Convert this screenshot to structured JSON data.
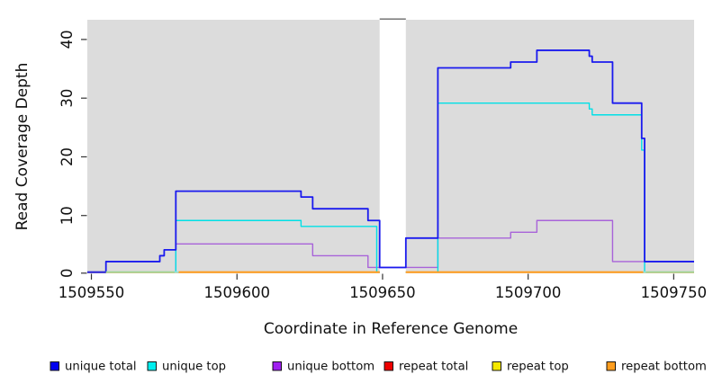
{
  "chart_data": {
    "type": "line",
    "subtype": "step-coverage-plot",
    "title": "",
    "xlabel": "Coordinate in Reference Genome",
    "ylabel": "Read Coverage Depth",
    "xlim": [
      1509548.6,
      1509757.0
    ],
    "ylim": [
      0,
      43.2
    ],
    "x_ticks": [
      1509550,
      1509600,
      1509650,
      1509700,
      1509750
    ],
    "y_ticks": [
      0,
      10,
      20,
      30,
      40
    ],
    "grid": "off",
    "plot_background": "#dcdcdc",
    "gap_region": {
      "x1": 1509649,
      "x2": 1509658,
      "fill": "#ffffff",
      "top_border": "#808080"
    },
    "shaded_regions": [
      [
        1509548.6,
        1509649
      ],
      [
        1509658,
        1509757.0
      ]
    ],
    "series": [
      {
        "name": "unique total",
        "color": "#1a1aee",
        "width": 1.8,
        "steps": [
          [
            1509548.6,
            0
          ],
          [
            1509555,
            2
          ],
          [
            1509573.5,
            3
          ],
          [
            1509575,
            4
          ],
          [
            1509579,
            14
          ],
          [
            1509622,
            13
          ],
          [
            1509626,
            11
          ],
          [
            1509645,
            9
          ],
          [
            1509649,
            1
          ],
          [
            1509658,
            6
          ],
          [
            1509669,
            35
          ],
          [
            1509694,
            36
          ],
          [
            1509703,
            38
          ],
          [
            1509721,
            37
          ],
          [
            1509722,
            36
          ],
          [
            1509729,
            29
          ],
          [
            1509739,
            23
          ],
          [
            1509740,
            2
          ]
        ]
      },
      {
        "name": "unique top",
        "color": "#00e0e6",
        "width": 1.4,
        "steps": [
          [
            1509548.6,
            0
          ],
          [
            1509579,
            9
          ],
          [
            1509622,
            8
          ],
          [
            1509648,
            0
          ],
          [
            1509649,
            null
          ],
          [
            1509658,
            0
          ],
          [
            1509669,
            29
          ],
          [
            1509721,
            28
          ],
          [
            1509722,
            27
          ],
          [
            1509739,
            21
          ],
          [
            1509740,
            0
          ]
        ]
      },
      {
        "name": "unique bottom",
        "color": "#a863d9",
        "width": 1.4,
        "steps": [
          [
            1509548.6,
            0
          ],
          [
            1509579,
            5
          ],
          [
            1509626,
            3
          ],
          [
            1509645,
            1
          ],
          [
            1509669,
            6
          ],
          [
            1509694,
            7
          ],
          [
            1509703,
            9
          ],
          [
            1509729,
            2
          ]
        ]
      },
      {
        "name": "repeat total",
        "color": "#ee0000",
        "width": 1.4,
        "steps": [
          [
            1509548.6,
            0
          ],
          [
            1509649,
            null
          ],
          [
            1509658,
            0
          ]
        ]
      },
      {
        "name": "repeat top",
        "color": "#f5e800",
        "width": 1.4,
        "steps": [
          [
            1509548.6,
            0
          ],
          [
            1509649,
            null
          ],
          [
            1509658,
            0
          ]
        ]
      },
      {
        "name": "repeat bottom",
        "color": "#ff9d1e",
        "width": 1.8,
        "steps": [
          [
            1509548.6,
            0
          ],
          [
            1509649,
            null
          ],
          [
            1509658,
            0
          ]
        ]
      }
    ],
    "baseline_segments": [
      {
        "x1": 1509548.6,
        "x2": 1509555.0,
        "color": "#2a2ae0"
      },
      {
        "x1": 1509555.0,
        "x2": 1509578.5,
        "color": "#9bd79b"
      },
      {
        "x1": 1509578.5,
        "x2": 1509580.0,
        "color": "#8fe8e0"
      },
      {
        "x1": 1509580.0,
        "x2": 1509649.0,
        "color": "#ff9d1e"
      },
      {
        "x1": 1509658.0,
        "x2": 1509739.5,
        "color": "#ff9d1e"
      },
      {
        "x1": 1509739.5,
        "x2": 1509740.5,
        "color": "#8fe8e0"
      },
      {
        "x1": 1509740.5,
        "x2": 1509757.0,
        "color": "#9bd79b"
      }
    ],
    "legend_position": "bottom",
    "legend": [
      {
        "label": "unique total",
        "swatch": "#0000ee"
      },
      {
        "label": "unique top",
        "swatch": "#00eeee"
      },
      {
        "label": "unique bottom",
        "swatch": "#a020f0"
      },
      {
        "label": "repeat total",
        "swatch": "#ee0000"
      },
      {
        "label": "repeat top",
        "swatch": "#f5e800"
      },
      {
        "label": "repeat bottom",
        "swatch": "#ff9d1e"
      }
    ]
  }
}
